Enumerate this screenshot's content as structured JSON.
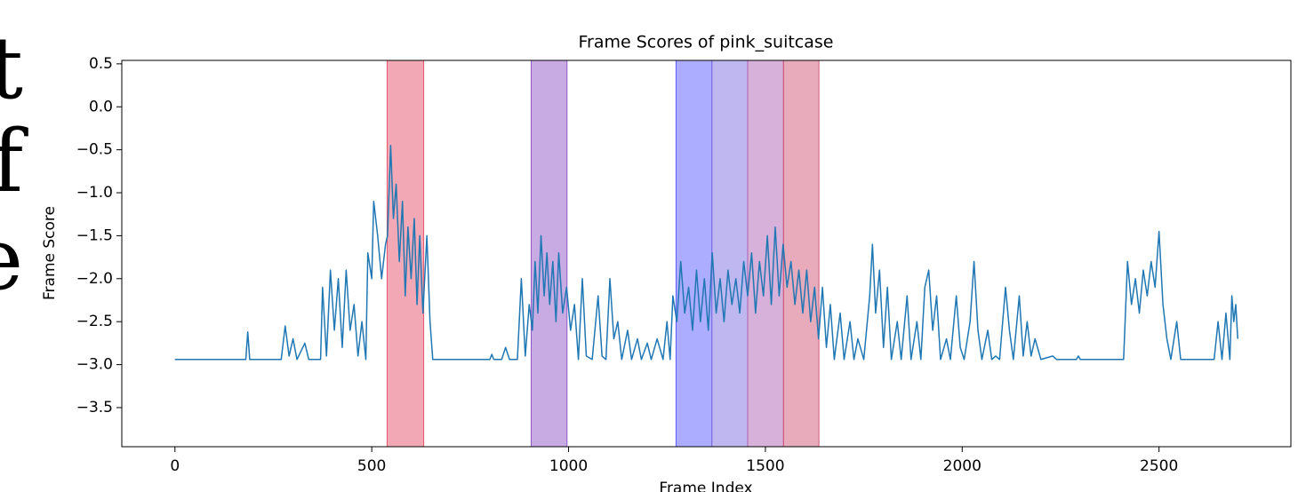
{
  "side_text": [
    "t",
    "f",
    "e"
  ],
  "chart_data": {
    "type": "line",
    "title": "Frame Scores of pink_suitcase",
    "x_label": "Frame Index",
    "y_label": "Frame Score",
    "xlim": [
      -135,
      2835
    ],
    "ylim": [
      -3.955,
      0.54
    ],
    "xticks": [
      0,
      500,
      1000,
      1500,
      2000,
      2500
    ],
    "yticks": [
      0.5,
      {
        "value": 0,
        "label": "0.0"
      },
      {
        "value": -0.5,
        "label": "−0.5"
      },
      {
        "value": -1,
        "label": "−1.0"
      },
      {
        "value": -1.5,
        "label": "−1.5"
      },
      {
        "value": -2,
        "label": "−2.0"
      },
      {
        "value": -2.5,
        "label": "−2.5"
      },
      {
        "value": -3,
        "label": "−3.0"
      },
      {
        "value": -3.5,
        "label": "−3.5"
      }
    ],
    "grid": false,
    "span_opacity": 0.5,
    "spans": [
      {
        "start": 539,
        "end": 632,
        "color": "#e5536c"
      },
      {
        "start": 905,
        "end": 996,
        "color": "#9158c8"
      },
      {
        "start": 1273,
        "end": 1364,
        "color": "#5b5bff"
      },
      {
        "start": 1364,
        "end": 1455,
        "color": "#8070e0"
      },
      {
        "start": 1455,
        "end": 1546,
        "color": "#b064b4"
      },
      {
        "start": 1546,
        "end": 1636,
        "color": "#d25878"
      }
    ],
    "series": [
      {
        "name": "Frame Score",
        "color": "#1f77b4",
        "x": [
          0,
          180,
          185,
          190,
          270,
          280,
          290,
          300,
          310,
          330,
          340,
          370,
          375,
          385,
          395,
          405,
          415,
          425,
          435,
          445,
          455,
          465,
          475,
          485,
          490,
          500,
          505,
          515,
          525,
          535,
          540,
          548,
          555,
          562,
          570,
          578,
          585,
          592,
          600,
          608,
          615,
          622,
          630,
          640,
          648,
          655,
          800,
          805,
          810,
          830,
          840,
          850,
          870,
          880,
          890,
          900,
          908,
          915,
          922,
          930,
          938,
          945,
          952,
          960,
          968,
          975,
          985,
          995,
          1005,
          1015,
          1025,
          1035,
          1045,
          1060,
          1075,
          1085,
          1095,
          1105,
          1115,
          1125,
          1135,
          1150,
          1160,
          1175,
          1185,
          1200,
          1210,
          1225,
          1240,
          1250,
          1258,
          1265,
          1275,
          1285,
          1295,
          1305,
          1315,
          1325,
          1335,
          1345,
          1355,
          1365,
          1375,
          1385,
          1395,
          1405,
          1415,
          1425,
          1435,
          1445,
          1455,
          1465,
          1475,
          1485,
          1495,
          1505,
          1515,
          1525,
          1535,
          1545,
          1555,
          1565,
          1575,
          1585,
          1595,
          1605,
          1615,
          1625,
          1635,
          1645,
          1655,
          1665,
          1675,
          1690,
          1700,
          1715,
          1725,
          1735,
          1750,
          1765,
          1772,
          1780,
          1790,
          1800,
          1810,
          1820,
          1835,
          1845,
          1860,
          1870,
          1885,
          1895,
          1905,
          1915,
          1925,
          1935,
          1945,
          1960,
          1970,
          1985,
          1995,
          2005,
          2020,
          2030,
          2040,
          2050,
          2065,
          2075,
          2085,
          2095,
          2110,
          2120,
          2130,
          2145,
          2155,
          2165,
          2175,
          2185,
          2200,
          2230,
          2240,
          2290,
          2295,
          2300,
          2410,
          2420,
          2430,
          2440,
          2450,
          2460,
          2470,
          2480,
          2490,
          2500,
          2510,
          2520,
          2530,
          2545,
          2555,
          2640,
          2650,
          2660,
          2670,
          2680,
          2685,
          2690,
          2695,
          2700
        ],
        "values": [
          -2.94,
          -2.94,
          -2.62,
          -2.94,
          -2.94,
          -2.55,
          -2.9,
          -2.7,
          -2.94,
          -2.75,
          -2.94,
          -2.94,
          -2.1,
          -2.9,
          -1.9,
          -2.6,
          -2.0,
          -2.8,
          -1.9,
          -2.6,
          -2.3,
          -2.9,
          -2.5,
          -2.94,
          -1.7,
          -2.0,
          -1.1,
          -1.5,
          -2.0,
          -1.6,
          -1.5,
          -0.45,
          -1.3,
          -0.9,
          -1.8,
          -1.1,
          -2.2,
          -1.4,
          -2.0,
          -1.3,
          -2.3,
          -1.5,
          -2.4,
          -1.5,
          -2.5,
          -2.94,
          -2.94,
          -2.88,
          -2.94,
          -2.94,
          -2.8,
          -2.94,
          -2.94,
          -2.0,
          -2.9,
          -2.3,
          -2.6,
          -1.8,
          -2.4,
          -1.5,
          -2.2,
          -1.7,
          -2.3,
          -1.8,
          -2.5,
          -1.7,
          -2.4,
          -2.1,
          -2.6,
          -2.3,
          -2.94,
          -2.0,
          -2.9,
          -2.94,
          -2.2,
          -2.9,
          -2.94,
          -2.0,
          -2.7,
          -2.5,
          -2.94,
          -2.6,
          -2.94,
          -2.7,
          -2.94,
          -2.75,
          -2.94,
          -2.7,
          -2.94,
          -2.5,
          -2.94,
          -2.2,
          -2.5,
          -1.8,
          -2.4,
          -2.1,
          -2.6,
          -1.9,
          -2.5,
          -2.0,
          -2.6,
          -1.7,
          -2.4,
          -2.0,
          -2.5,
          -1.9,
          -2.3,
          -2.0,
          -2.4,
          -1.8,
          -2.2,
          -1.7,
          -2.4,
          -1.8,
          -2.2,
          -1.5,
          -2.3,
          -1.4,
          -2.2,
          -1.6,
          -2.1,
          -1.8,
          -2.3,
          -1.9,
          -2.4,
          -1.9,
          -2.5,
          -2.1,
          -2.7,
          -2.1,
          -2.8,
          -2.3,
          -2.94,
          -2.4,
          -2.94,
          -2.5,
          -2.94,
          -2.7,
          -2.94,
          -2.2,
          -1.6,
          -2.4,
          -1.9,
          -2.8,
          -2.1,
          -2.94,
          -2.5,
          -2.94,
          -2.2,
          -2.94,
          -2.5,
          -2.94,
          -2.1,
          -1.9,
          -2.6,
          -2.2,
          -2.94,
          -2.7,
          -2.94,
          -2.2,
          -2.8,
          -2.94,
          -2.5,
          -1.8,
          -2.6,
          -2.94,
          -2.6,
          -2.94,
          -2.9,
          -2.94,
          -2.1,
          -2.6,
          -2.94,
          -2.2,
          -2.9,
          -2.5,
          -2.9,
          -2.7,
          -2.94,
          -2.9,
          -2.94,
          -2.94,
          -2.9,
          -2.94,
          -2.94,
          -1.8,
          -2.3,
          -2.0,
          -2.4,
          -1.9,
          -2.2,
          -1.8,
          -2.1,
          -1.45,
          -2.3,
          -2.7,
          -2.94,
          -2.5,
          -2.94,
          -2.94,
          -2.5,
          -2.94,
          -2.4,
          -2.94,
          -2.2,
          -2.5,
          -2.3,
          -2.7
        ]
      }
    ]
  }
}
